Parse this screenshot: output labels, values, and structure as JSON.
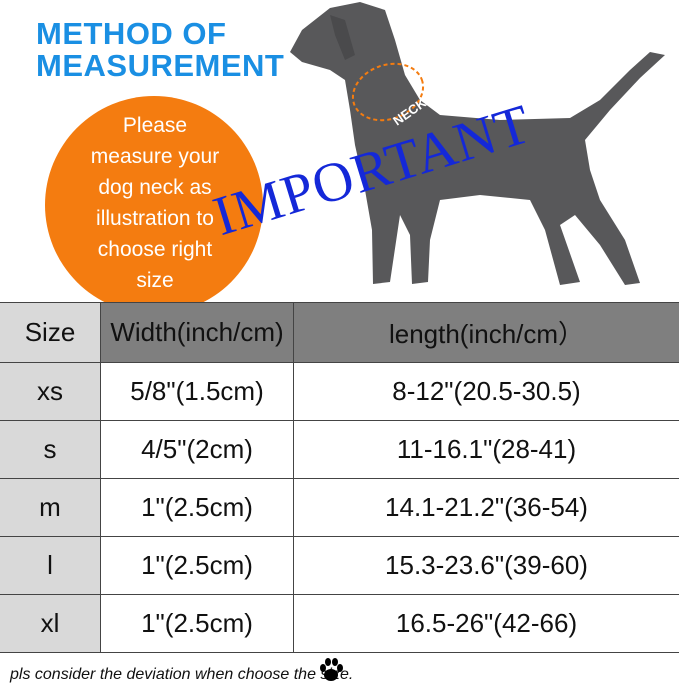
{
  "title": {
    "line1": "METHOD OF",
    "line2": "MEASUREMENT"
  },
  "instruction": {
    "lines": [
      "Please",
      "measure your",
      "dog neck as",
      "illustration to",
      "choose right",
      "size"
    ]
  },
  "neck_label": "NECK",
  "watermark": "IMPORTANT",
  "table": {
    "headers": [
      "Size",
      "Width(inch/cm)",
      "length(inch/cm）"
    ],
    "rows": [
      [
        "xs",
        "5/8\"(1.5cm)",
        "8-12\"(20.5-30.5)"
      ],
      [
        "s",
        "4/5\"(2cm)",
        "11-16.1\"(28-41)"
      ],
      [
        "m",
        "1\"(2.5cm)",
        "14.1-21.2\"(36-54)"
      ],
      [
        "l",
        "1\"(2.5cm)",
        "15.3-23.6\"(39-60)"
      ],
      [
        "xl",
        "1\"(2.5cm)",
        "16.5-26\"(42-66)"
      ]
    ]
  },
  "note": "pls consider the deviation when choose the size.",
  "colors": {
    "title": "#1a8fe3",
    "circle": "#f47c10",
    "watermark": "#1428d8",
    "dog": "#58585a",
    "header_dark": "#7f7f7f",
    "size_col": "#d9d9d9"
  },
  "icons": [
    "paw-icon"
  ]
}
